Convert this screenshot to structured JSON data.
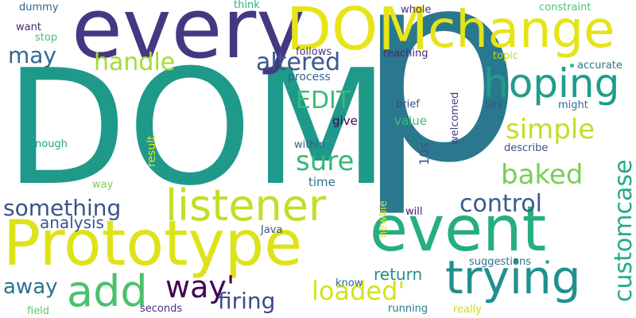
{
  "words": [
    {
      "id": "p",
      "text": "p",
      "color": "#2a788e"
    },
    {
      "id": "dom-large",
      "text": "DOM",
      "color": "#1f998a"
    },
    {
      "id": "every",
      "text": "every",
      "color": "#453882"
    },
    {
      "id": "dom-top",
      "text": "DOM",
      "color": "#e7e419"
    },
    {
      "id": "change",
      "text": "change",
      "color": "#e5e419"
    },
    {
      "id": "prototype",
      "text": "Prototype",
      "color": "#dde318"
    },
    {
      "id": "event",
      "text": "event",
      "color": "#26ad81"
    },
    {
      "id": "trying",
      "text": "trying",
      "color": "#21908d"
    },
    {
      "id": "hoping",
      "text": "hoping",
      "color": "#1f9e89"
    },
    {
      "id": "listener",
      "text": "listener",
      "color": "#c0df25"
    },
    {
      "id": "add",
      "text": "add",
      "color": "#4ac16d"
    },
    {
      "id": "handle",
      "text": "handle",
      "color": "#a5db36"
    },
    {
      "id": "altered",
      "text": "altered",
      "color": "#38598c"
    },
    {
      "id": "may",
      "text": "may",
      "color": "#31688e"
    },
    {
      "id": "something",
      "text": "something",
      "color": "#3b528b"
    },
    {
      "id": "simple",
      "text": "simple",
      "color": "#c2df23"
    },
    {
      "id": "baked",
      "text": "baked",
      "color": "#75d054"
    },
    {
      "id": "sure",
      "text": "sure",
      "color": "#35b779"
    },
    {
      "id": "control",
      "text": "control",
      "color": "#365c8d"
    },
    {
      "id": "customcase",
      "text": "customcase",
      "color": "#25ab82"
    },
    {
      "id": "edit",
      "text": "EDIT",
      "color": "#3cbb75"
    },
    {
      "id": "way-apos",
      "text": "way'",
      "color": "#440154"
    },
    {
      "id": "firing",
      "text": "firing",
      "color": "#3e4a89"
    },
    {
      "id": "loaded",
      "text": "loaded'",
      "color": "#d5e21a"
    },
    {
      "id": "away",
      "text": "away",
      "color": "#2c728e"
    },
    {
      "id": "return",
      "text": "return",
      "color": "#218f8d"
    },
    {
      "id": "analysis",
      "text": "analysis",
      "color": "#3a548c"
    },
    {
      "id": "process",
      "text": "process",
      "color": "#31688e"
    },
    {
      "id": "dummy",
      "text": "dummy",
      "color": "#33638d"
    },
    {
      "id": "think",
      "text": "think",
      "color": "#2db27d"
    },
    {
      "id": "whole",
      "text": "whole",
      "color": "#46337e"
    },
    {
      "id": "constraint",
      "text": "constraint",
      "color": "#4ec36b"
    },
    {
      "id": "want",
      "text": "want",
      "color": "#482475"
    },
    {
      "id": "stop",
      "text": "stop",
      "color": "#4ac16d"
    },
    {
      "id": "follows",
      "text": "follows",
      "color": "#453781"
    },
    {
      "id": "reaching",
      "text": "reaching",
      "color": "#482878"
    },
    {
      "id": "topic",
      "text": "topic",
      "color": "#bade28"
    },
    {
      "id": "accurate",
      "text": "accurate",
      "color": "#2c728e"
    },
    {
      "id": "give",
      "text": "give",
      "color": "#440154"
    },
    {
      "id": "value",
      "text": "value",
      "color": "#3dbc74"
    },
    {
      "id": "brief",
      "text": "brief",
      "color": "#3e4989"
    },
    {
      "id": "welcomed",
      "text": "welcomed",
      "color": "#423f85"
    },
    {
      "id": "say",
      "text": "say",
      "color": "#3b528b"
    },
    {
      "id": "might",
      "text": "might",
      "color": "#2e6e8e"
    },
    {
      "id": "result",
      "text": "result",
      "color": "#e2e418"
    },
    {
      "id": "enough",
      "text": "enough",
      "color": "#1fa188"
    },
    {
      "id": "within",
      "text": "within",
      "color": "#33638d"
    },
    {
      "id": "10s",
      "text": "10s",
      "color": "#3b528b"
    },
    {
      "id": "describe",
      "text": "describe",
      "color": "#3b528b"
    },
    {
      "id": "time",
      "text": "time",
      "color": "#2d708e"
    },
    {
      "id": "way",
      "text": "way",
      "color": "#7ad151"
    },
    {
      "id": "will",
      "text": "will",
      "color": "#482173"
    },
    {
      "id": "newbie",
      "text": "newbie",
      "color": "#e5e419"
    },
    {
      "id": "java",
      "text": "Java",
      "color": "#3b528b"
    },
    {
      "id": "suggestions",
      "text": "suggestions",
      "color": "#2c728e"
    },
    {
      "id": "know",
      "text": "know",
      "color": "#31688e"
    },
    {
      "id": "seconds",
      "text": "seconds",
      "color": "#46337e"
    },
    {
      "id": "running",
      "text": "running",
      "color": "#2a788e"
    },
    {
      "id": "really",
      "text": "really",
      "color": "#c8e020"
    },
    {
      "id": "field",
      "text": "field",
      "color": "#5ec962"
    }
  ]
}
